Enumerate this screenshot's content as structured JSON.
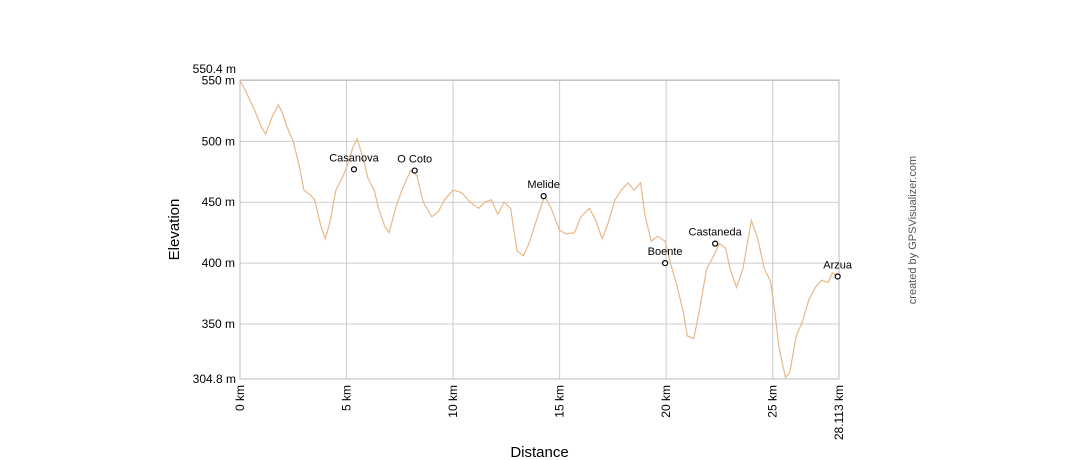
{
  "chart_data": {
    "type": "line",
    "xlabel": "Distance",
    "ylabel": "Elevation",
    "credit": "created by GPSVisualizer.com",
    "ymin_label": "304.8 m",
    "ymax_label": "550.4 m",
    "ylim": [
      304.8,
      550.4
    ],
    "xlim": [
      0,
      28.113
    ],
    "grid": true,
    "line_color": "#e8b889",
    "y_ticks": [
      {
        "value": 550,
        "label": "550 m"
      },
      {
        "value": 500,
        "label": "500 m"
      },
      {
        "value": 450,
        "label": "450 m"
      },
      {
        "value": 400,
        "label": "400 m"
      },
      {
        "value": 350,
        "label": "350 m"
      }
    ],
    "x_ticks": [
      {
        "value": 0,
        "label": "0 km"
      },
      {
        "value": 5,
        "label": "5 km"
      },
      {
        "value": 10,
        "label": "10 km"
      },
      {
        "value": 15,
        "label": "15 km"
      },
      {
        "value": 20,
        "label": "20 km"
      },
      {
        "value": 25,
        "label": "25 km"
      },
      {
        "value": 28.113,
        "label": "28.113 km"
      }
    ],
    "waypoints": [
      {
        "name": "Casanova",
        "x": 5.35,
        "y": 477
      },
      {
        "name": "O Coto",
        "x": 8.2,
        "y": 476
      },
      {
        "name": "Melide",
        "x": 14.25,
        "y": 455
      },
      {
        "name": "Boente",
        "x": 19.95,
        "y": 400
      },
      {
        "name": "Castaneda",
        "x": 22.3,
        "y": 416
      },
      {
        "name": "Arzua",
        "x": 28.05,
        "y": 389
      }
    ],
    "series": [
      {
        "x": [
          0,
          0.3,
          0.7,
          1.0,
          1.2,
          1.5,
          1.8,
          2.0,
          2.2,
          2.5,
          2.8,
          3.0,
          3.3,
          3.5,
          3.8,
          4.0,
          4.2,
          4.5,
          4.8,
          5.0,
          5.3,
          5.5,
          5.8,
          6.0,
          6.3,
          6.5,
          6.8,
          7.0,
          7.3,
          7.6,
          8.0,
          8.3,
          8.6,
          9.0,
          9.3,
          9.6,
          10.0,
          10.4,
          10.8,
          11.2,
          11.5,
          11.8,
          12.1,
          12.4,
          12.7,
          13.0,
          13.3,
          13.6,
          14.0,
          14.3,
          14.6,
          15.0,
          15.3,
          15.7,
          16.0,
          16.4,
          16.7,
          17.0,
          17.3,
          17.6,
          17.9,
          18.2,
          18.5,
          18.8,
          19.0,
          19.3,
          19.6,
          19.95,
          20.2,
          20.5,
          20.8,
          21.0,
          21.3,
          21.6,
          21.9,
          22.2,
          22.5,
          22.8,
          23.0,
          23.3,
          23.6,
          23.8,
          24.0,
          24.3,
          24.6,
          24.9,
          25.1,
          25.3,
          25.6,
          25.8,
          26.1,
          26.4,
          26.7,
          27.0,
          27.3,
          27.6,
          27.8,
          28.113
        ],
        "y": [
          550,
          540,
          525,
          512,
          506,
          520,
          530,
          523,
          512,
          500,
          478,
          460,
          456,
          452,
          430,
          420,
          432,
          460,
          470,
          478,
          495,
          502,
          485,
          470,
          460,
          445,
          430,
          425,
          445,
          460,
          476,
          472,
          450,
          438,
          442,
          452,
          460,
          458,
          450,
          445,
          450,
          452,
          440,
          450,
          445,
          410,
          406,
          418,
          440,
          455,
          445,
          427,
          424,
          425,
          438,
          445,
          435,
          420,
          434,
          452,
          460,
          466,
          460,
          466,
          440,
          418,
          422,
          418,
          400,
          382,
          360,
          340,
          338,
          365,
          395,
          405,
          416,
          412,
          395,
          380,
          395,
          415,
          435,
          420,
          396,
          385,
          360,
          330,
          306,
          310,
          340,
          352,
          370,
          380,
          386,
          384,
          392,
          389
        ]
      }
    ]
  }
}
